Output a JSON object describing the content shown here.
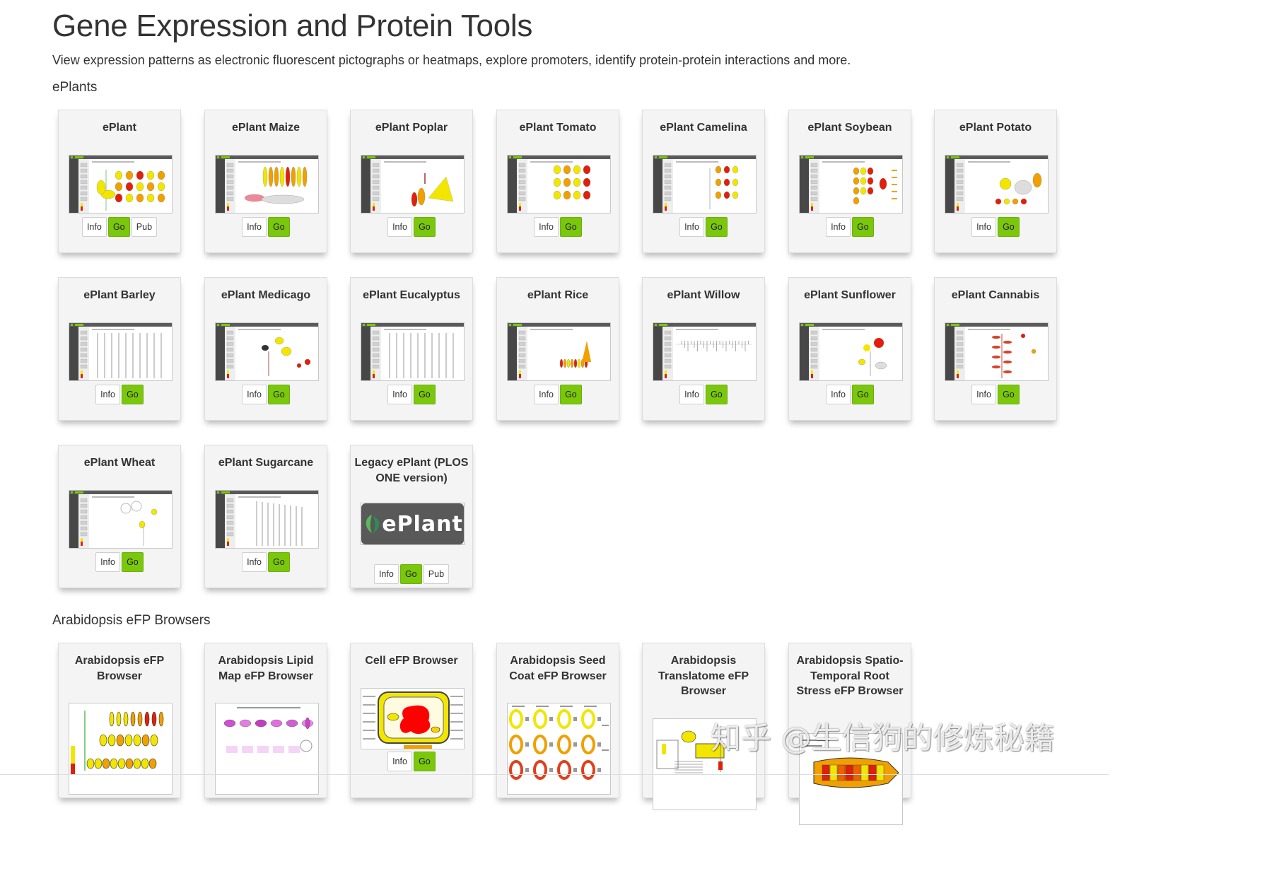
{
  "page": {
    "title": "Gene Expression and Protein Tools",
    "subtitle": "View expression patterns as electronic fluorescent pictographs or heatmaps, explore promoters, identify protein-protein interactions and more."
  },
  "sections": [
    {
      "heading": "ePlants",
      "cards": [
        {
          "title": "ePlant",
          "thumb": "eplant-ui",
          "art": "arabidopsis",
          "buttons": [
            "Info",
            "Go",
            "Pub"
          ]
        },
        {
          "title": "ePlant Maize",
          "thumb": "eplant-ui",
          "art": "maize",
          "buttons": [
            "Info",
            "Go"
          ]
        },
        {
          "title": "ePlant Poplar",
          "thumb": "eplant-ui",
          "art": "poplar",
          "buttons": [
            "Info",
            "Go"
          ]
        },
        {
          "title": "ePlant Tomato",
          "thumb": "eplant-ui",
          "art": "tomato",
          "buttons": [
            "Info",
            "Go"
          ]
        },
        {
          "title": "ePlant Camelina",
          "thumb": "eplant-ui",
          "art": "camelina",
          "buttons": [
            "Info",
            "Go"
          ]
        },
        {
          "title": "ePlant Soybean",
          "thumb": "eplant-ui",
          "art": "soybean",
          "buttons": [
            "Info",
            "Go"
          ]
        },
        {
          "title": "ePlant Potato",
          "thumb": "eplant-ui",
          "art": "potato",
          "buttons": [
            "Info",
            "Go"
          ]
        },
        {
          "title": "ePlant Barley",
          "thumb": "eplant-ui",
          "art": "lines",
          "buttons": [
            "Info",
            "Go"
          ]
        },
        {
          "title": "ePlant Medicago",
          "thumb": "eplant-ui",
          "art": "medicago",
          "buttons": [
            "Info",
            "Go"
          ]
        },
        {
          "title": "ePlant Eucalyptus",
          "thumb": "eplant-ui",
          "art": "lines",
          "buttons": [
            "Info",
            "Go"
          ]
        },
        {
          "title": "ePlant Rice",
          "thumb": "eplant-ui",
          "art": "rice",
          "buttons": [
            "Info",
            "Go"
          ]
        },
        {
          "title": "ePlant Willow",
          "thumb": "eplant-ui",
          "art": "willow",
          "buttons": [
            "Info",
            "Go"
          ]
        },
        {
          "title": "ePlant Sunflower",
          "thumb": "eplant-ui",
          "art": "sunflower",
          "buttons": [
            "Info",
            "Go"
          ]
        },
        {
          "title": "ePlant Cannabis",
          "thumb": "eplant-ui",
          "art": "cannabis",
          "buttons": [
            "Info",
            "Go"
          ]
        },
        {
          "title": "ePlant Wheat",
          "thumb": "eplant-ui",
          "art": "wheat",
          "buttons": [
            "Info",
            "Go"
          ]
        },
        {
          "title": "ePlant Sugarcane",
          "thumb": "eplant-ui",
          "art": "sugarcane",
          "buttons": [
            "Info",
            "Go"
          ]
        },
        {
          "title": "Legacy ePlant (PLOS ONE version)",
          "thumb": "eplant-logo",
          "logo_text": "ePlant",
          "buttons": [
            "Info",
            "Go",
            "Pub"
          ]
        }
      ]
    },
    {
      "heading": "Arabidopsis eFP Browsers",
      "cards": [
        {
          "title": "Arabidopsis eFP Browser",
          "thumb": "efp-arabidopsis",
          "buttons": []
        },
        {
          "title": "Arabidopsis Lipid Map eFP Browser",
          "thumb": "efp-lipid",
          "buttons": []
        },
        {
          "title": "Cell eFP Browser",
          "thumb": "efp-cell",
          "buttons": [
            "Info",
            "Go"
          ]
        },
        {
          "title": "Arabidopsis Seed Coat eFP Browser",
          "thumb": "efp-seedcoat",
          "buttons": []
        },
        {
          "title": "Arabidopsis Translatome eFP Browser",
          "thumb": "efp-translatome",
          "buttons": []
        },
        {
          "title": "Arabidopsis Spatio-Temporal Root Stress eFP Browser",
          "thumb": "efp-root",
          "buttons": []
        }
      ]
    }
  ],
  "watermark": "知乎 @生信狗的修炼秘籍",
  "colors": {
    "go_button": "#7ac70b",
    "card_bg": "#f4f4f4",
    "efp_yellow": "#f2e600",
    "efp_red": "#e0200c"
  }
}
